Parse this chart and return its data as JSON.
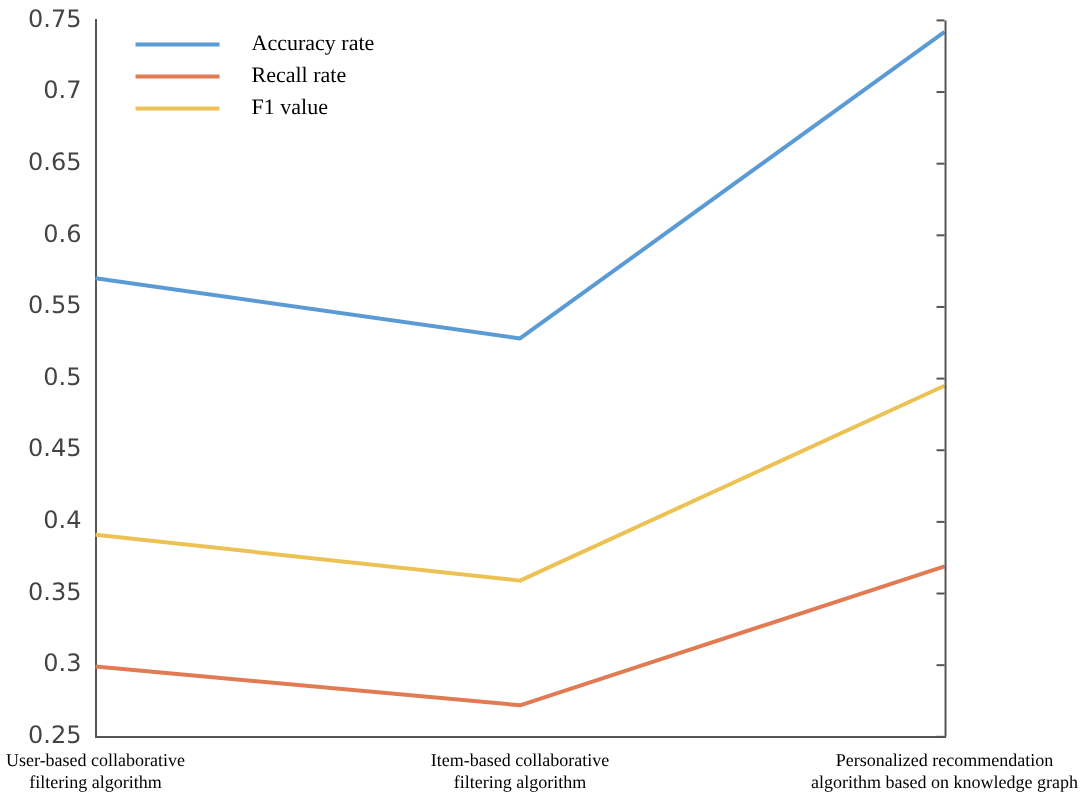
{
  "chart_data": {
    "type": "line",
    "categories": [
      "User-based collaborative filtering algorithm",
      "Item-based collaborative filtering algorithm",
      "Personalized recommendation algorithm based on knowledge graph"
    ],
    "series": [
      {
        "name": "Accuracy rate",
        "color": "#5b9bd5",
        "values": [
          0.57,
          0.528,
          0.742
        ]
      },
      {
        "name": "Recall rate",
        "color": "#e07b54",
        "values": [
          0.299,
          0.272,
          0.369
        ]
      },
      {
        "name": "F1 value",
        "color": "#edc255",
        "values": [
          0.391,
          0.359,
          0.495
        ]
      }
    ],
    "ylim": [
      0.25,
      0.75
    ],
    "yticks": [
      0.25,
      0.3,
      0.35,
      0.4,
      0.45,
      0.5,
      0.55,
      0.6,
      0.65,
      0.7,
      0.75
    ],
    "grid": false,
    "legend": "top left",
    "marker": "none",
    "line_style": "solid"
  }
}
